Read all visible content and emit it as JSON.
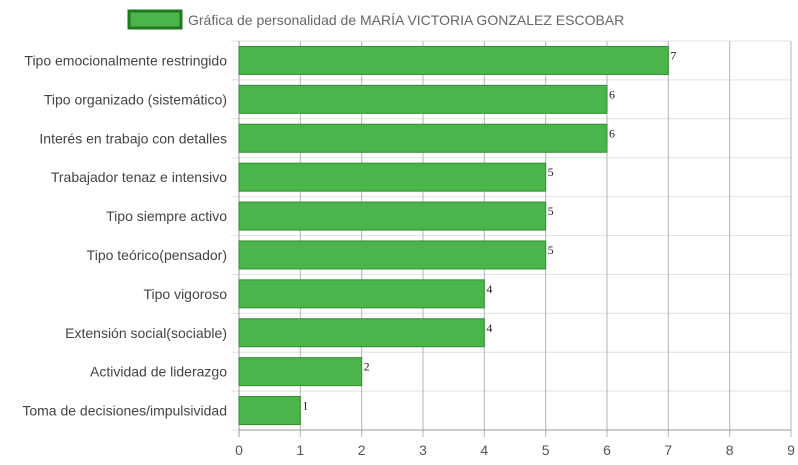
{
  "chart_data": {
    "type": "bar",
    "orientation": "horizontal",
    "title": "",
    "xlabel": "",
    "ylabel": "",
    "xlim": [
      0,
      9
    ],
    "xticks": [
      0,
      1,
      2,
      3,
      4,
      5,
      6,
      7,
      8,
      9
    ],
    "grid": true,
    "legend_placement": "top-center",
    "bar_color": "#4bb54b",
    "bar_border_color": "#2f8f2f",
    "series": [
      {
        "name": "Gráfica de personalidad de MARÍA VICTORIA GONZALEZ ESCOBAR",
        "values": [
          7,
          6,
          6,
          5,
          5,
          5,
          4,
          4,
          2,
          1
        ]
      }
    ],
    "categories": [
      "Tipo emocionalmente restringido",
      "Tipo organizado (sistemático)",
      "Interés en trabajo con detalles",
      "Trabajador tenaz e intensivo",
      "Tipo siempre activo",
      "Tipo teórico(pensador)",
      "Tipo vigoroso",
      "Extensión social(sociable)",
      "Actividad de liderazgo",
      "Toma de decisiones/impulsividad"
    ],
    "data_labels": [
      "7",
      "6",
      "6",
      "5",
      "5",
      "5",
      "4",
      "4",
      "2",
      "1"
    ]
  }
}
